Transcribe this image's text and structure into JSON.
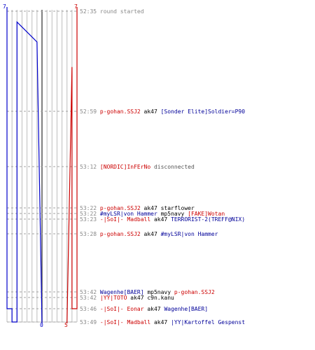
{
  "chart_data": {
    "type": "line",
    "axis": {
      "left_top_label": "7",
      "right_top_label": "7",
      "bottom_left_label": "0",
      "bottom_right_label": "5",
      "grid": true
    },
    "series": [
      {
        "name": "",
        "color": "#0000cc",
        "steps": [
          [
            0,
            7
          ],
          [
            9,
            6
          ],
          [
            10,
            5
          ],
          [
            11,
            4
          ],
          [
            12,
            3
          ],
          [
            13,
            2
          ],
          [
            14,
            1
          ],
          [
            17,
            0
          ]
        ]
      },
      {
        "name": "",
        "color": "#cc0000",
        "steps": [
          [
            0,
            7
          ],
          [
            9,
            6
          ],
          [
            12,
            5
          ]
        ]
      }
    ],
    "events": [
      {
        "time": "52:35",
        "parts": [
          {
            "text": "round started",
            "color": "#888888"
          }
        ]
      },
      {
        "time": "52:59",
        "parts": [
          {
            "text": "p-gohan.SSJ2",
            "color": "#cc0000"
          },
          {
            "text": " ak47 ",
            "color": "#000000"
          },
          {
            "text": "[Sonder Elite]Soldier=P90",
            "color": "#000099"
          }
        ]
      },
      {
        "time": "53:12",
        "parts": [
          {
            "text": "[NORDIC]InFErNo",
            "color": "#cc0000"
          },
          {
            "text": " disconnected",
            "color": "#555555"
          }
        ]
      },
      {
        "time": "53:22",
        "parts": [
          {
            "text": "p-gohan.SSJ2",
            "color": "#cc0000"
          },
          {
            "text": " ak47 starflower",
            "color": "#000000"
          }
        ]
      },
      {
        "time": "53:22",
        "parts": [
          {
            "text": "#myLSR|von Hammer",
            "color": "#000099"
          },
          {
            "text": " mp5navy ",
            "color": "#000000"
          },
          {
            "text": "[FAKE]Wotan",
            "color": "#cc0000"
          }
        ]
      },
      {
        "time": "53:23",
        "parts": [
          {
            "text": "-|SoI|- Madball",
            "color": "#cc0000"
          },
          {
            "text": " ak47 ",
            "color": "#000000"
          },
          {
            "text": "TERRORIST-2(TREFF@NIX)",
            "color": "#000099"
          }
        ]
      },
      {
        "time": "53:28",
        "parts": [
          {
            "text": "p-gohan.SSJ2",
            "color": "#cc0000"
          },
          {
            "text": " ak47 ",
            "color": "#000000"
          },
          {
            "text": "#myLSR|von Hammer",
            "color": "#000099"
          }
        ]
      },
      {
        "time": "53:42",
        "parts": [
          {
            "text": "Wagenhe[BAER]",
            "color": "#000099"
          },
          {
            "text": " mp5navy ",
            "color": "#000000"
          },
          {
            "text": "p-gohan.SSJ2",
            "color": "#cc0000"
          }
        ]
      },
      {
        "time": "53:42",
        "parts": [
          {
            "text": "|YY|TOTO",
            "color": "#cc0000"
          },
          {
            "text": " ak47 c9n.kanu",
            "color": "#000000"
          }
        ]
      },
      {
        "time": "53:46",
        "parts": [
          {
            "text": "-|SoI|- Eonar",
            "color": "#cc0000"
          },
          {
            "text": " ak47 ",
            "color": "#000000"
          },
          {
            "text": "Wagenhe[BAER]",
            "color": "#000099"
          }
        ]
      },
      {
        "time": "53:49",
        "parts": [
          {
            "text": "-|SoI|- Madball",
            "color": "#cc0000"
          },
          {
            "text": " ak47 ",
            "color": "#000000"
          },
          {
            "text": "|YY|Kartoffel Gespenst",
            "color": "#000099"
          }
        ]
      }
    ]
  }
}
